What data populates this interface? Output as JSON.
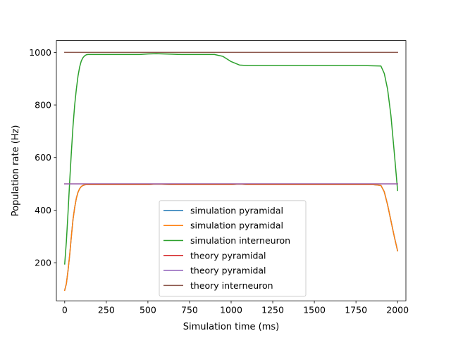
{
  "chart_data": {
    "type": "line",
    "title": "",
    "xlabel": "Simulation time (ms)",
    "ylabel": "Population rate (Hz)",
    "xlim": [
      -50,
      2050
    ],
    "ylim": [
      55,
      1045
    ],
    "xticks": [
      0,
      250,
      500,
      750,
      1000,
      1250,
      1500,
      1750,
      2000
    ],
    "yticks": [
      200,
      400,
      600,
      800,
      1000
    ],
    "grid": false,
    "legend_position": "lower center",
    "series": [
      {
        "name": "simulation pyramidal",
        "color": "#1f77b4",
        "x": [
          0,
          10,
          20,
          30,
          40,
          50,
          60,
          70,
          80,
          90,
          100,
          110,
          120,
          130,
          140,
          150,
          175,
          250,
          500,
          550,
          650,
          1000,
          1050,
          1100,
          1500,
          1850,
          1900,
          1920,
          1940,
          1960,
          1980,
          2000
        ],
        "y": [
          95,
          120,
          170,
          230,
          300,
          365,
          410,
          445,
          468,
          482,
          490,
          494,
          496,
          497,
          497,
          497,
          497,
          497,
          497,
          499,
          497,
          497,
          499,
          497,
          497,
          497,
          494,
          470,
          420,
          360,
          300,
          245
        ]
      },
      {
        "name": "simulation pyramidal",
        "color": "#ff7f0e",
        "x": [
          0,
          10,
          20,
          30,
          40,
          50,
          60,
          70,
          80,
          90,
          100,
          110,
          120,
          130,
          140,
          150,
          175,
          250,
          500,
          550,
          650,
          1000,
          1050,
          1100,
          1500,
          1850,
          1900,
          1920,
          1940,
          1960,
          1980,
          2000
        ],
        "y": [
          95,
          120,
          170,
          230,
          300,
          365,
          410,
          445,
          468,
          482,
          490,
          494,
          496,
          497,
          497,
          497,
          497,
          497,
          497,
          499,
          497,
          497,
          499,
          497,
          497,
          497,
          494,
          470,
          420,
          360,
          300,
          245
        ]
      },
      {
        "name": "simulation interneuron",
        "color": "#2ca02c",
        "x": [
          0,
          10,
          20,
          30,
          40,
          50,
          60,
          70,
          80,
          90,
          100,
          110,
          120,
          130,
          140,
          200,
          300,
          400,
          450,
          500,
          550,
          600,
          650,
          700,
          900,
          950,
          1000,
          1050,
          1100,
          1200,
          1500,
          1800,
          1900,
          1920,
          1940,
          1960,
          1980,
          2000
        ],
        "y": [
          195,
          280,
          390,
          510,
          620,
          720,
          800,
          860,
          910,
          945,
          968,
          980,
          987,
          991,
          992,
          992,
          992,
          992,
          992,
          994,
          995,
          994,
          993,
          992,
          992,
          985,
          965,
          952,
          950,
          950,
          950,
          950,
          948,
          920,
          860,
          760,
          620,
          475
        ]
      },
      {
        "name": "theory pyramidal",
        "color": "#d62728",
        "x": [
          0,
          2000
        ],
        "y": [
          500,
          500
        ]
      },
      {
        "name": "theory pyramidal",
        "color": "#9467bd",
        "x": [
          0,
          2000
        ],
        "y": [
          500,
          500
        ]
      },
      {
        "name": "theory interneuron",
        "color": "#8c564b",
        "x": [
          0,
          2000
        ],
        "y": [
          1000,
          1000
        ]
      }
    ]
  }
}
